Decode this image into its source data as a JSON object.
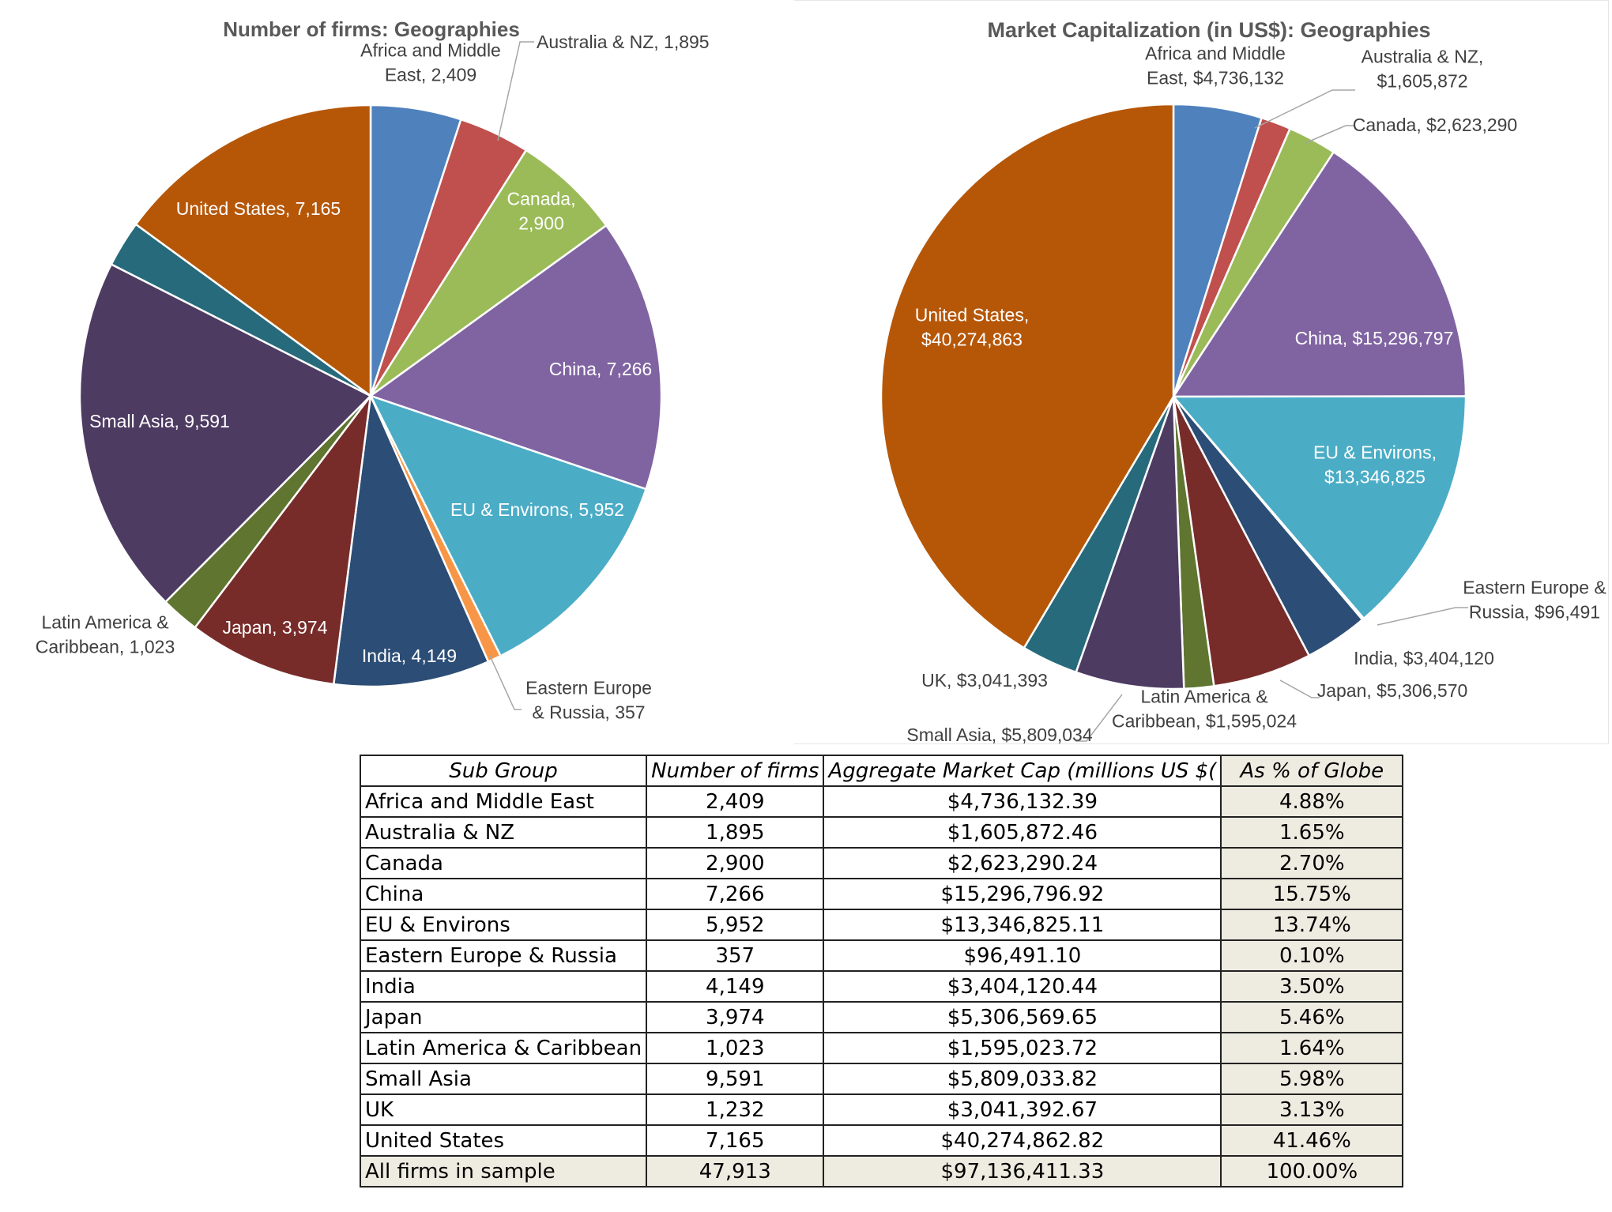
{
  "chart_data": [
    {
      "type": "pie",
      "title": "Number of firms: Geographies",
      "slices": [
        {
          "label": "Africa and Middle East",
          "value": 2409,
          "display": "Africa and Middle East, 2,409",
          "color": "#4f81bd"
        },
        {
          "label": "Australia & NZ",
          "value": 1895,
          "display": "Australia & NZ, 1,895",
          "color": "#c0504d"
        },
        {
          "label": "Canada",
          "value": 2900,
          "display": "Canada, 2,900",
          "color": "#9bbb59"
        },
        {
          "label": "China",
          "value": 7266,
          "display": "China, 7,266",
          "color": "#8064a2"
        },
        {
          "label": "EU & Environs",
          "value": 5952,
          "display": "EU & Environs, 5,952",
          "color": "#4bacc6"
        },
        {
          "label": "Eastern Europe & Russia",
          "value": 357,
          "display": "Eastern Europe & Russia, 357",
          "color": "#f79646"
        },
        {
          "label": "India",
          "value": 4149,
          "display": "India, 4,149",
          "color": "#2c4d75"
        },
        {
          "label": "Japan",
          "value": 3974,
          "display": "Japan, 3,974",
          "color": "#772c2a"
        },
        {
          "label": "Latin America & Caribbean",
          "value": 1023,
          "display": "Latin America & Caribbean, 1,023",
          "color": "#5f7530"
        },
        {
          "label": "Small Asia",
          "value": 9591,
          "display": "Small Asia, 9,591",
          "color": "#4d3b62"
        },
        {
          "label": "UK",
          "value": 1232,
          "display": "",
          "color": "#276a7c"
        },
        {
          "label": "United States",
          "value": 7165,
          "display": "United States, 7,165",
          "color": "#b65708"
        }
      ]
    },
    {
      "type": "pie",
      "title": "Market Capitalization (in US$): Geographies",
      "slices": [
        {
          "label": "Africa and Middle East",
          "value": 4736132,
          "display": "Africa and Middle East, $4,736,132",
          "color": "#4f81bd"
        },
        {
          "label": "Australia & NZ",
          "value": 1605872,
          "display": "Australia & NZ, $1,605,872",
          "color": "#c0504d"
        },
        {
          "label": "Canada",
          "value": 2623290,
          "display": "Canada, $2,623,290",
          "color": "#9bbb59"
        },
        {
          "label": "China",
          "value": 15296797,
          "display": "China, $15,296,797",
          "color": "#8064a2"
        },
        {
          "label": "EU & Environs",
          "value": 13346825,
          "display": "EU & Environs, $13,346,825",
          "color": "#4bacc6"
        },
        {
          "label": "Eastern Europe & Russia",
          "value": 96491,
          "display": "Eastern Europe & Russia, $96,491",
          "color": "#f79646"
        },
        {
          "label": "India",
          "value": 3404120,
          "display": "India, $3,404,120",
          "color": "#2c4d75"
        },
        {
          "label": "Japan",
          "value": 5306570,
          "display": "Japan, $5,306,570",
          "color": "#772c2a"
        },
        {
          "label": "Latin America & Caribbean",
          "value": 1595024,
          "display": "Latin America & Caribbean, $1,595,024",
          "color": "#5f7530"
        },
        {
          "label": "Small Asia",
          "value": 5809034,
          "display": "Small Asia, $5,809,034",
          "color": "#4d3b62"
        },
        {
          "label": "UK",
          "value": 3041393,
          "display": "UK, $3,041,393",
          "color": "#276a7c"
        },
        {
          "label": "United States",
          "value": 40274863,
          "display": "United States, $40,274,863",
          "color": "#b65708"
        }
      ]
    },
    {
      "type": "table",
      "columns": [
        "Sub Group",
        "Number of firms",
        "Aggregate Market Cap (millions US $(",
        "As % of Globe"
      ],
      "rows": [
        [
          "Africa and Middle East",
          "2,409",
          "$4,736,132.39",
          "4.88%"
        ],
        [
          "Australia & NZ",
          "1,895",
          "$1,605,872.46",
          "1.65%"
        ],
        [
          "Canada",
          "2,900",
          "$2,623,290.24",
          "2.70%"
        ],
        [
          "China",
          "7,266",
          "$15,296,796.92",
          "15.75%"
        ],
        [
          "EU & Environs",
          "5,952",
          "$13,346,825.11",
          "13.74%"
        ],
        [
          "Eastern Europe & Russia",
          "357",
          "$96,491.10",
          "0.10%"
        ],
        [
          "India",
          "4,149",
          "$3,404,120.44",
          "3.50%"
        ],
        [
          "Japan",
          "3,974",
          "$5,306,569.65",
          "5.46%"
        ],
        [
          "Latin America & Caribbean",
          "1,023",
          "$1,595,023.72",
          "1.64%"
        ],
        [
          "Small Asia",
          "9,591",
          "$5,809,033.82",
          "5.98%"
        ],
        [
          "UK",
          "1,232",
          "$3,041,392.67",
          "3.13%"
        ],
        [
          "United States",
          "7,165",
          "$40,274,862.82",
          "41.46%"
        ],
        [
          "All firms in sample",
          "47,913",
          "$97,136,411.33",
          "100.00%"
        ]
      ]
    }
  ]
}
